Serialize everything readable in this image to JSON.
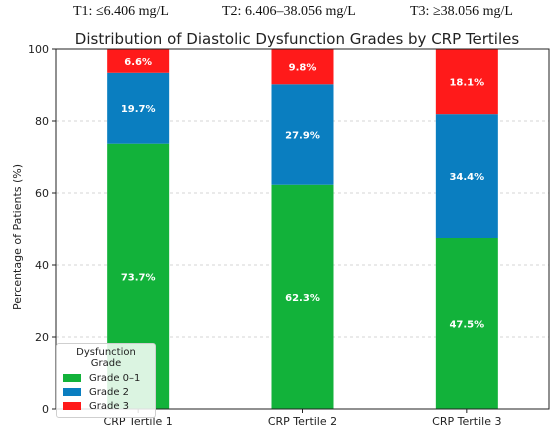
{
  "header": {
    "t1": "T1: ≤6.406 mg/L",
    "t2": "T2: 6.406–38.056 mg/L",
    "t3": "T3: ≥38.056 mg/L"
  },
  "chart_data": {
    "type": "bar",
    "stacked": true,
    "title": "Distribution of Diastolic Dysfunction Grades by CRP Tertiles",
    "xlabel": "",
    "ylabel": "Percentage of Patients (%)",
    "ylim": [
      0,
      100
    ],
    "yticks": [
      0,
      20,
      40,
      60,
      80,
      100
    ],
    "grid": true,
    "categories": [
      "CRP Tertile 1",
      "CRP Tertile 2",
      "CRP Tertile 3"
    ],
    "series": [
      {
        "name": "Grade 0–1",
        "color": "#12b23a",
        "values": [
          73.7,
          62.3,
          47.5
        ],
        "labels": [
          "73.7%",
          "62.3%",
          "47.5%"
        ]
      },
      {
        "name": "Grade 2",
        "color": "#0a7ec0",
        "values": [
          19.7,
          27.9,
          34.4
        ],
        "labels": [
          "19.7%",
          "27.9%",
          "34.4%"
        ]
      },
      {
        "name": "Grade 3",
        "color": "#ff1a1a",
        "values": [
          6.6,
          9.8,
          18.1
        ],
        "labels": [
          "6.6%",
          "9.8%",
          "18.1%"
        ]
      }
    ],
    "legend": {
      "title": "Dysfunction Grade",
      "position": "lower-left"
    }
  }
}
